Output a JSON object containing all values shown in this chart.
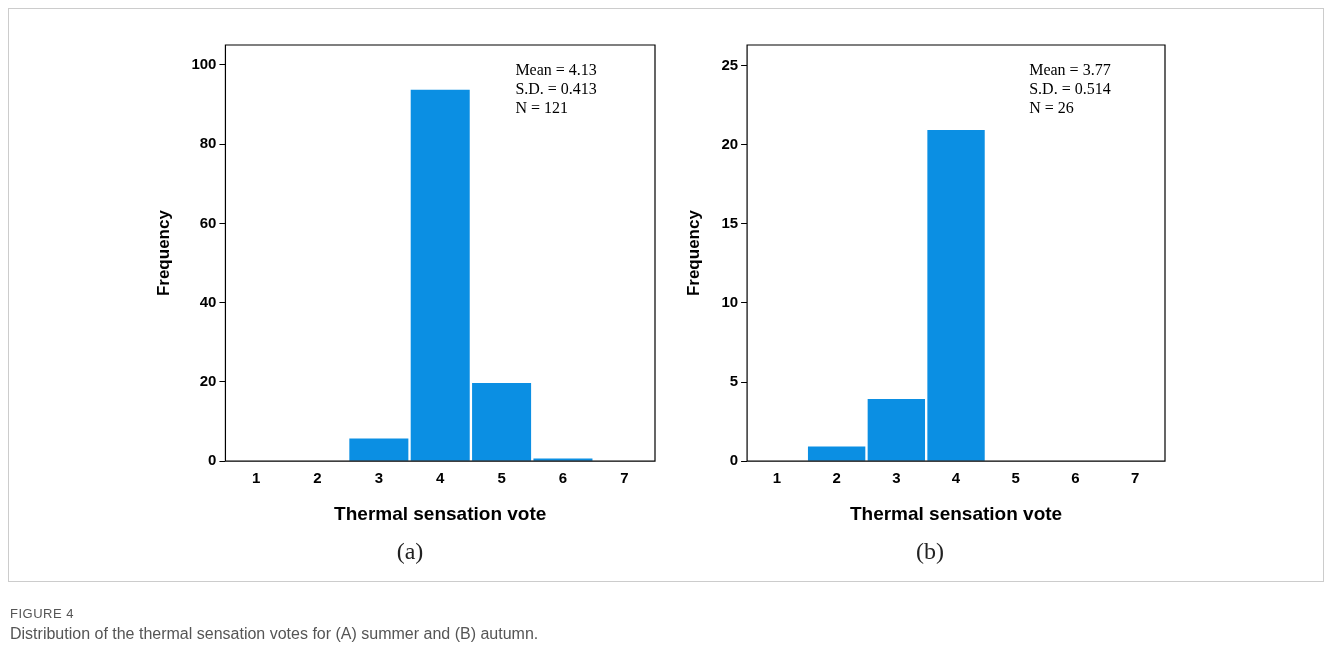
{
  "chart_data": [
    {
      "type": "histogram",
      "subtitle": "(a)",
      "xlabel": "Thermal sensation vote",
      "ylabel": "Frequency",
      "bins": [
        0.5,
        1.5,
        2.5,
        3.5,
        4.5,
        5.5,
        6.5,
        7.5
      ],
      "values": [
        0,
        0,
        6,
        94,
        20,
        1,
        0
      ],
      "color": "#0b8fe3",
      "xlim": [
        0.5,
        7.5
      ],
      "xticks": [
        1,
        2,
        3,
        4,
        5,
        6,
        7
      ],
      "ylim": [
        0,
        105
      ],
      "yticks": [
        0,
        20,
        40,
        60,
        80,
        100
      ],
      "annotations": [
        "Mean = 4.13",
        "S.D. = 0.413",
        "N = 121"
      ]
    },
    {
      "type": "histogram",
      "subtitle": "(b)",
      "xlabel": "Thermal sensation vote",
      "ylabel": "Frequency",
      "bins": [
        0.5,
        1.5,
        2.5,
        3.5,
        4.5,
        5.5,
        6.5,
        7.5
      ],
      "values": [
        0,
        1,
        4,
        21,
        0,
        0,
        0
      ],
      "color": "#0b8fe3",
      "xlim": [
        0.5,
        7.5
      ],
      "xticks": [
        1,
        2,
        3,
        4,
        5,
        6,
        7
      ],
      "ylim": [
        0,
        26.3
      ],
      "yticks": [
        0,
        5,
        10,
        15,
        20,
        25
      ],
      "annotations": [
        "Mean = 3.77",
        "S.D. = 0.514",
        "N = 26"
      ]
    },
    {
      "type": "other",
      "title": "FIGURE 4",
      "subtitle": "Distribution of the thermal sensation votes for (A) summer and (B) autumn."
    }
  ]
}
